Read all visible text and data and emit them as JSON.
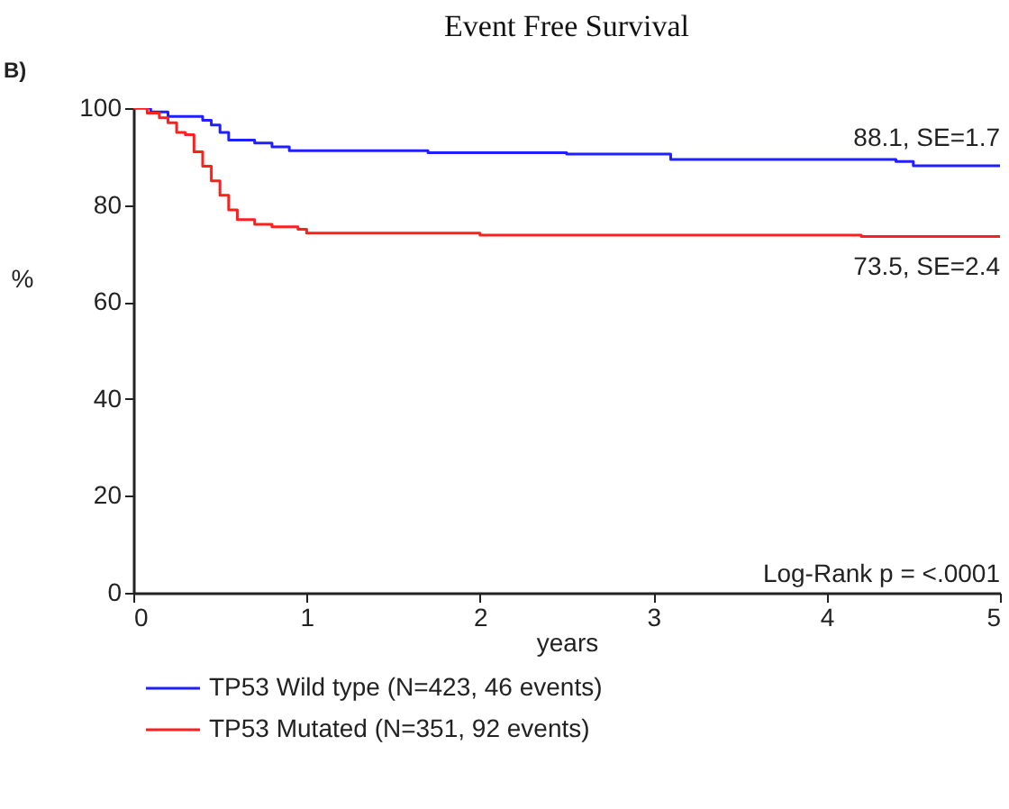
{
  "chart_data": {
    "type": "step",
    "title": "Event Free Survival",
    "xlabel": "years",
    "ylabel": "%",
    "xlim": [
      0,
      5
    ],
    "xticks": [
      0,
      1,
      2,
      3,
      4,
      5
    ],
    "ylim": [
      0,
      100
    ],
    "yticks": [
      0,
      20,
      40,
      60,
      80,
      100
    ],
    "grid": false,
    "legend": "bottom",
    "annotations": [
      "B)",
      {
        "text": "88.1, SE=1.7",
        "x": 5,
        "y": 88.1
      },
      {
        "text": "73.5, SE=2.4",
        "x": 5,
        "y": 73.5
      },
      "Log-Rank p = <.0001"
    ],
    "series": [
      {
        "name": "TP53 Wild type (N=423, 46 events)",
        "color": "#1f1fff",
        "x": [
          0,
          0.1,
          0.2,
          0.4,
          0.45,
          0.5,
          0.55,
          0.7,
          0.8,
          0.9,
          1.7,
          2.5,
          3.1,
          4.4,
          4.5,
          5
        ],
        "values": [
          100,
          99.2,
          98.3,
          97.5,
          96.5,
          95,
          93.4,
          92.8,
          92,
          91.2,
          90.8,
          90.5,
          89.4,
          89,
          88.1,
          88.1
        ]
      },
      {
        "name": "TP53 Mutated (N=351, 92 events)",
        "color": "#ff1f1f",
        "x": [
          0,
          0.08,
          0.15,
          0.2,
          0.25,
          0.3,
          0.35,
          0.4,
          0.45,
          0.5,
          0.55,
          0.6,
          0.7,
          0.8,
          0.95,
          1.0,
          2.0,
          4.2,
          5
        ],
        "values": [
          100,
          99,
          98,
          97,
          95,
          94.5,
          91,
          88,
          85,
          82,
          79,
          77,
          76,
          75.5,
          75,
          74.2,
          73.8,
          73.5,
          73.5
        ]
      }
    ]
  }
}
